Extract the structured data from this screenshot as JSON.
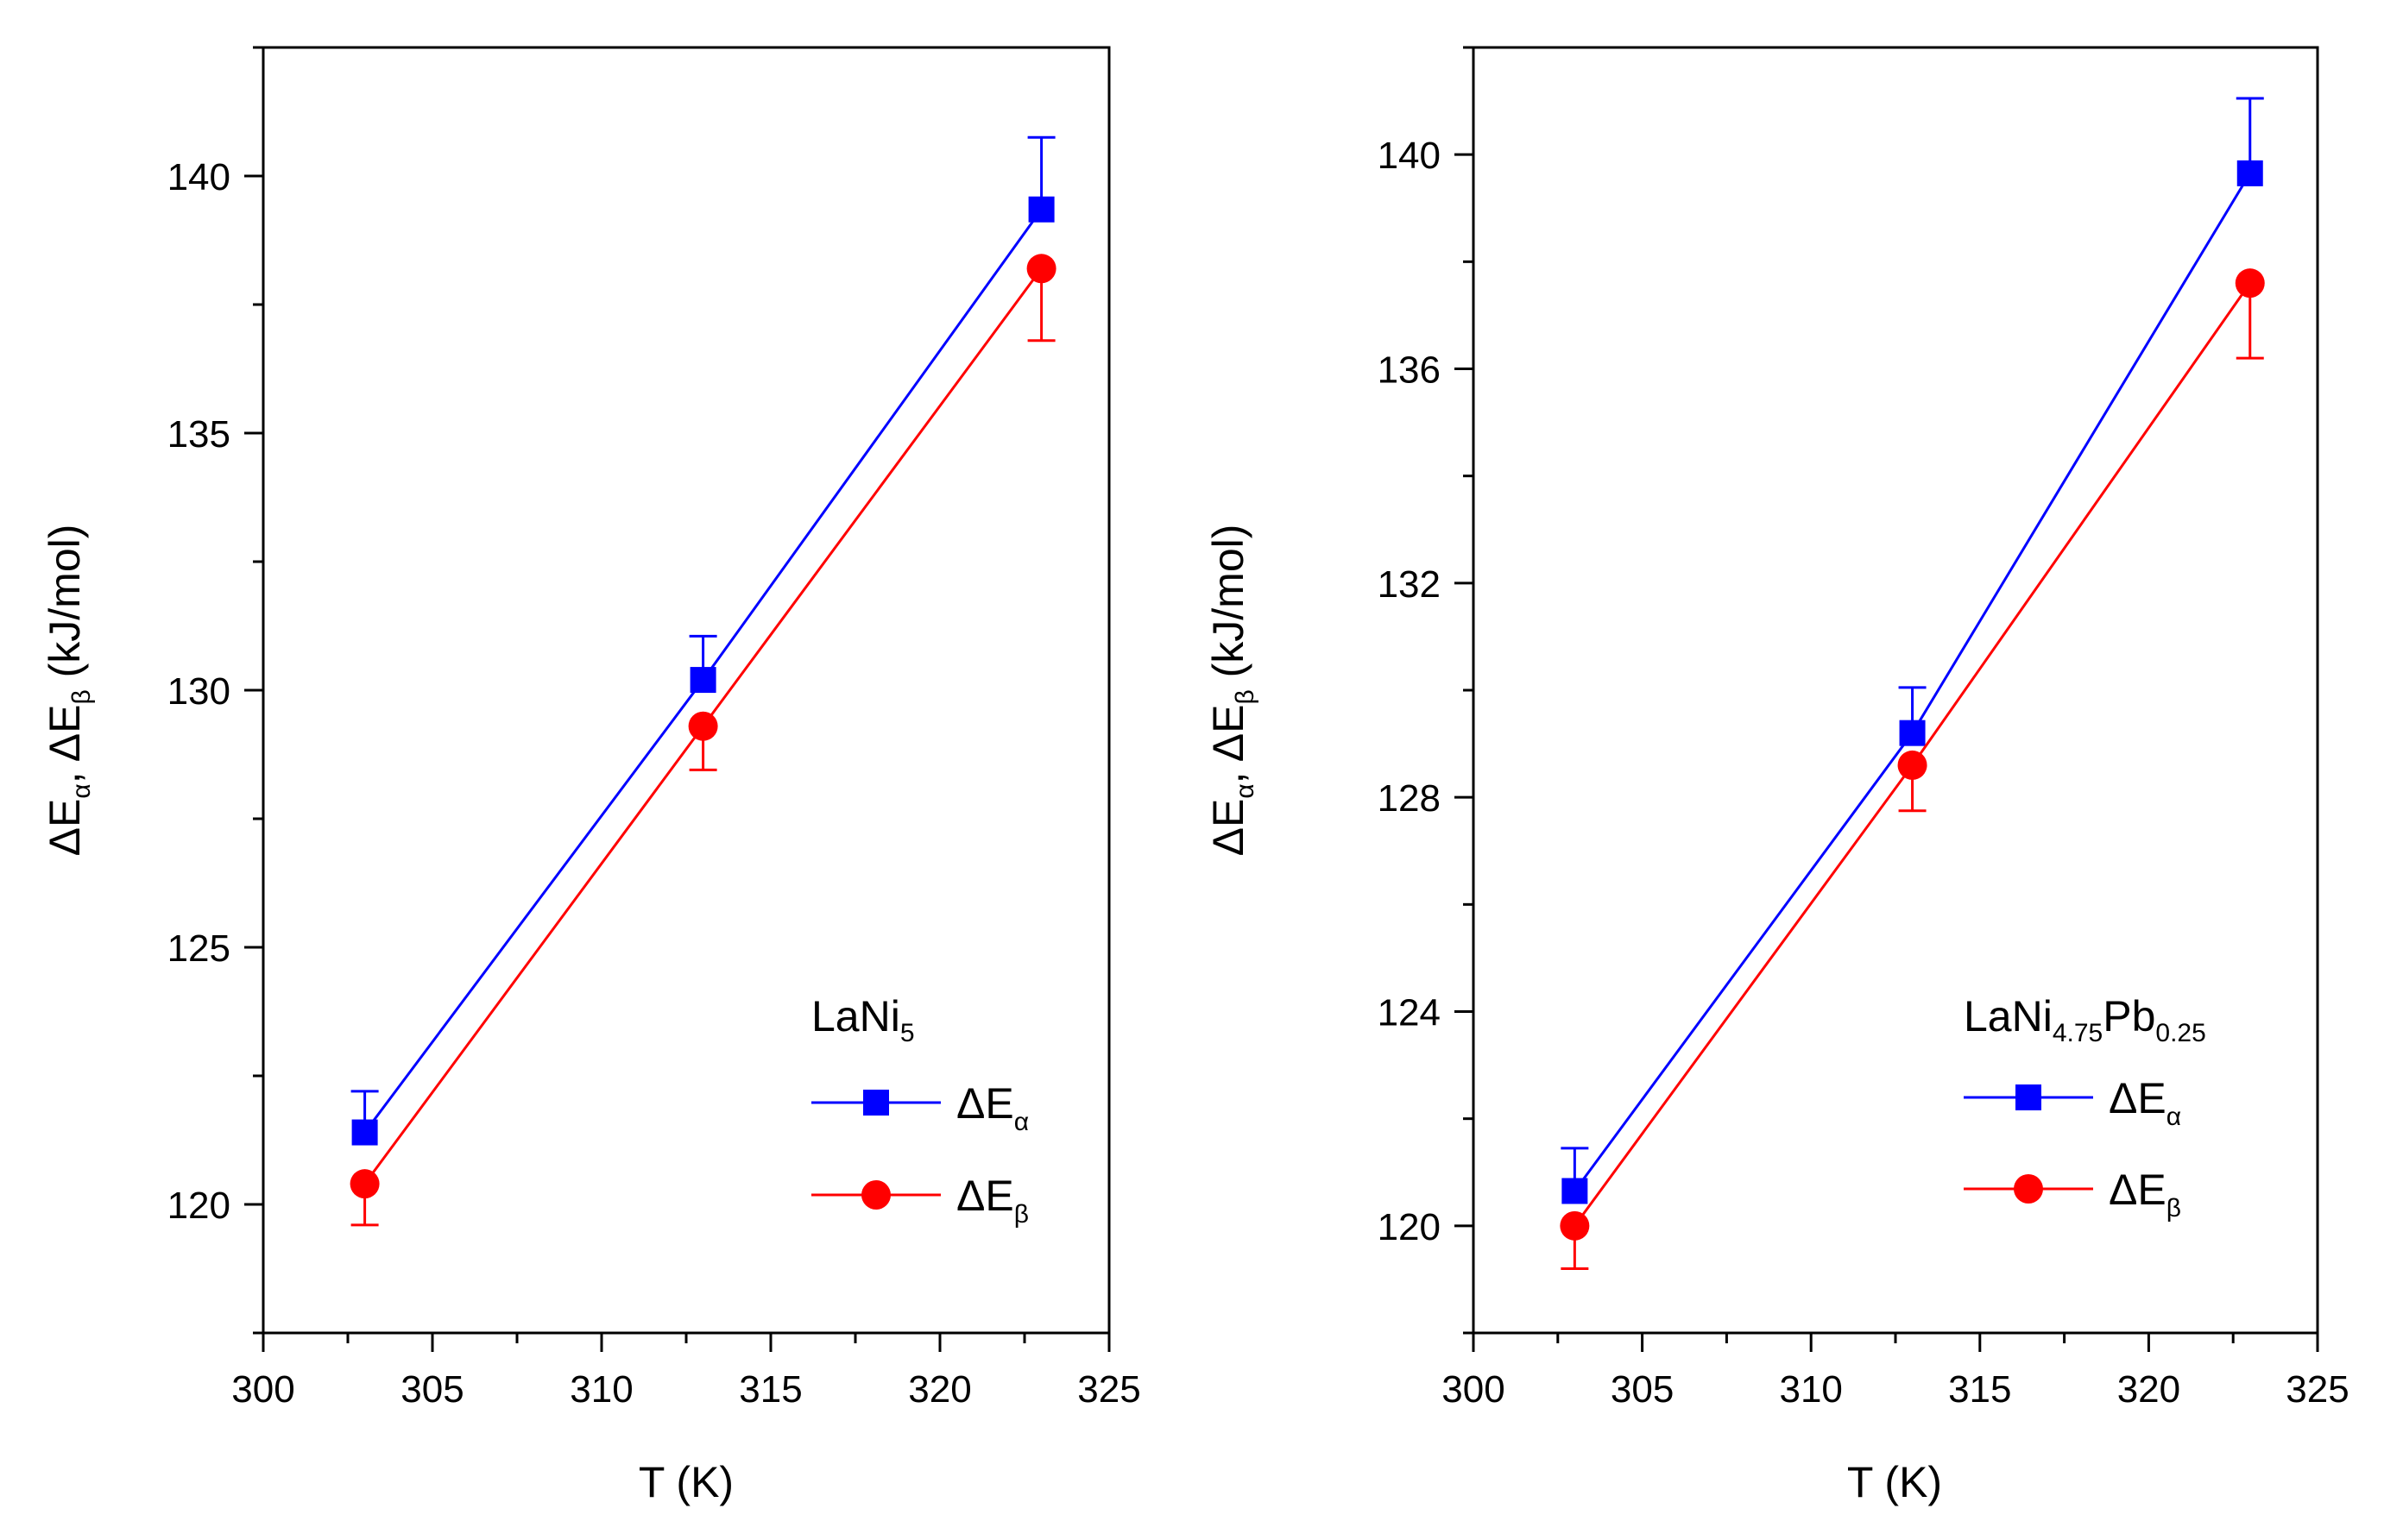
{
  "chart_data": [
    {
      "type": "line",
      "xlabel": "T (K)",
      "ylabel": {
        "prefix": "ΔE",
        "sub_a": "α",
        "sep": ", ΔE",
        "sub_b": "β",
        "unit": " (kJ/mol)"
      },
      "xlim": [
        300,
        325
      ],
      "ylim": [
        117.5,
        142.5
      ],
      "xticks": [
        300,
        305,
        310,
        315,
        320,
        325
      ],
      "xticks_labels": [
        "300",
        "305",
        "310",
        "315",
        "320",
        "325"
      ],
      "yticks": [
        120,
        125,
        130,
        135,
        140
      ],
      "yticks_labels": [
        "120",
        "125",
        "130",
        "135",
        "140"
      ],
      "x": [
        303,
        313,
        323
      ],
      "legend_title": {
        "main": "LaNi",
        "sub": "5",
        "tail": ""
      },
      "series": [
        {
          "name": "ΔEα",
          "label_main": "ΔE",
          "label_sub": "α",
          "marker": "square",
          "color": "#0000FF",
          "values": [
            121.4,
            130.2,
            139.35
          ],
          "errors": [
            0.8,
            0.85,
            1.4
          ]
        },
        {
          "name": "ΔEβ",
          "label_main": "ΔE",
          "label_sub": "β",
          "marker": "circle",
          "color": "#FF0000",
          "values": [
            120.4,
            129.3,
            138.2
          ],
          "errors": [
            0.8,
            0.85,
            1.4
          ]
        }
      ]
    },
    {
      "type": "line",
      "xlabel": "T (K)",
      "ylabel": {
        "prefix": "ΔE",
        "sub_a": "α",
        "sep": ", ΔE",
        "sub_b": "β",
        "unit": " (kJ/mol)"
      },
      "xlim": [
        300,
        325
      ],
      "ylim": [
        118,
        142
      ],
      "xticks": [
        300,
        305,
        310,
        315,
        320,
        325
      ],
      "xticks_labels": [
        "300",
        "305",
        "310",
        "315",
        "320",
        "325"
      ],
      "yticks": [
        120,
        124,
        128,
        132,
        136,
        140
      ],
      "yticks_labels": [
        "120",
        "124",
        "128",
        "132",
        "136",
        "140"
      ],
      "x": [
        303,
        313,
        323
      ],
      "legend_title": {
        "main": "LaNi",
        "sub": "4.75",
        "tail": "Pb",
        "sub2": "0.25"
      },
      "series": [
        {
          "name": "ΔEα",
          "label_main": "ΔE",
          "label_sub": "α",
          "marker": "square",
          "color": "#0000FF",
          "values": [
            120.65,
            129.2,
            139.65
          ],
          "errors": [
            0.8,
            0.85,
            1.4
          ]
        },
        {
          "name": "ΔEβ",
          "label_main": "ΔE",
          "label_sub": "β",
          "marker": "circle",
          "color": "#FF0000",
          "values": [
            120.0,
            128.6,
            137.6
          ],
          "errors": [
            0.8,
            0.85,
            1.4
          ]
        }
      ]
    }
  ]
}
